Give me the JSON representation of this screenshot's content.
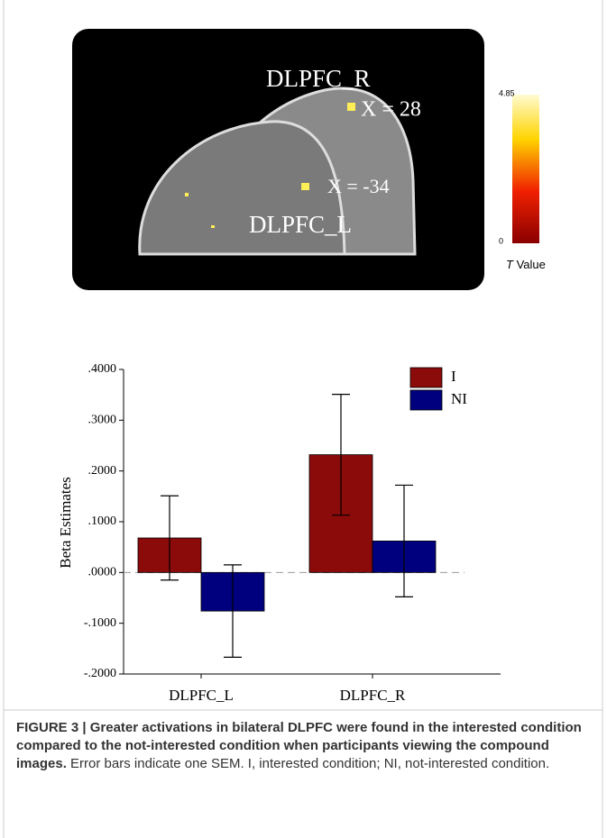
{
  "brain_panel": {
    "labels": [
      "DLPFC_R",
      "X = 28",
      "X = -34",
      "DLPFC_L"
    ],
    "colorbar": {
      "max": 4.85,
      "min": 0,
      "title_var": "T",
      "title": "Value"
    }
  },
  "chart_data": {
    "type": "bar",
    "y_label": "Beta Estimates",
    "categories": [
      "DLPFC_L",
      "DLPFC_R"
    ],
    "series": [
      {
        "name": "I",
        "color": "#8b0a0a",
        "values": [
          0.068,
          0.232
        ],
        "errors": [
          0.083,
          0.119
        ]
      },
      {
        "name": "NI",
        "color": "#00007e",
        "values": [
          -0.076,
          0.062
        ],
        "errors": [
          0.091,
          0.11
        ]
      }
    ],
    "ylim": [
      -0.2,
      0.4
    ],
    "yticks": [
      {
        "value": -0.2,
        "label": "-.2000"
      },
      {
        "value": -0.1,
        "label": "-.1000"
      },
      {
        "value": 0,
        "label": ".0000"
      },
      {
        "value": 0.1,
        "label": ".1000"
      },
      {
        "value": 0.2,
        "label": ".2000"
      },
      {
        "value": 0.3,
        "label": ".3000"
      },
      {
        "value": 0.4,
        "label": ".4000"
      }
    ],
    "legend": "upper right"
  },
  "caption": {
    "label": "FIGURE 3 |",
    "title": "Greater activations in bilateral DLPFC were found in the interested condition compared to the not-interested condition when participants viewing the compound images.",
    "text": "Error bars indicate one SEM. I, interested condition; NI, not-interested condition."
  }
}
